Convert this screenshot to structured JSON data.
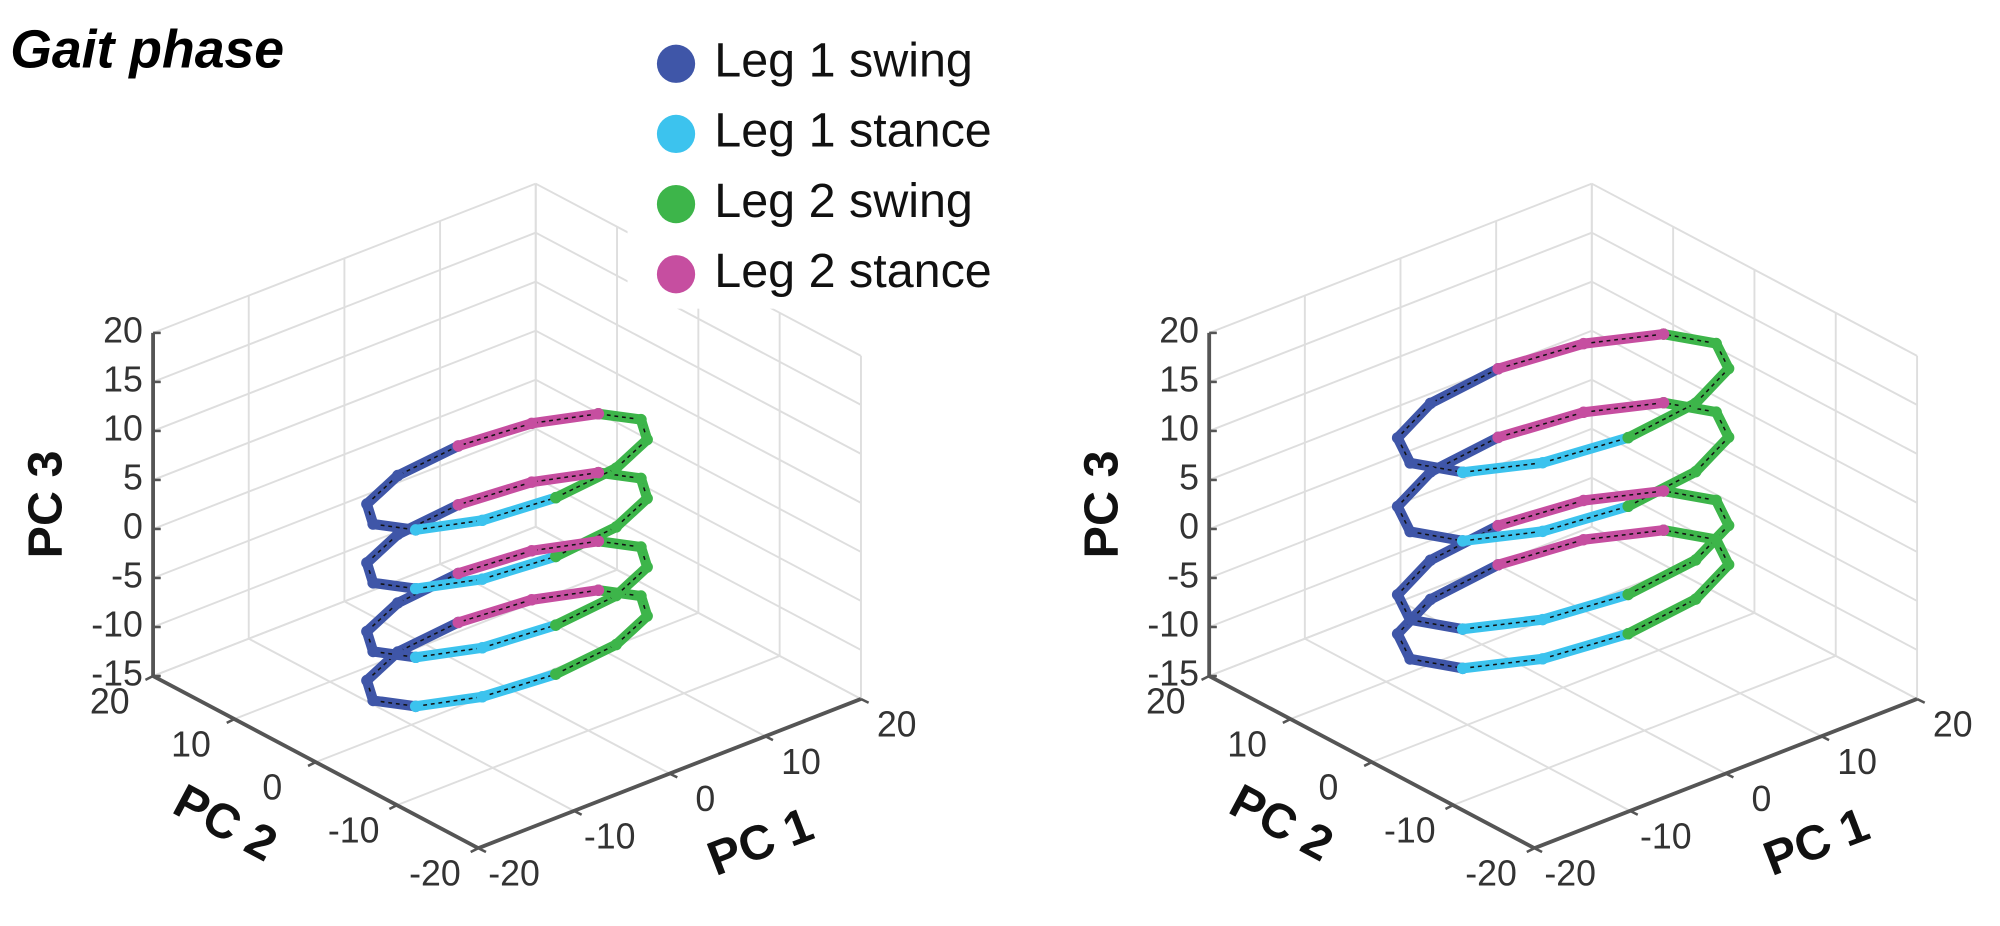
{
  "chart_data": [
    {
      "type": "scatter3d",
      "title": "Gait phase",
      "xlabel": "PC 1",
      "ylabel": "PC 2",
      "zlabel": "PC 3",
      "xlim": [
        -20,
        20
      ],
      "xticks": [
        -20,
        -10,
        0,
        10,
        20
      ],
      "ylim": [
        -20,
        20
      ],
      "yticks": [
        -20,
        -10,
        0,
        10,
        20
      ],
      "zlim": [
        -15,
        20
      ],
      "zticks": [
        -15,
        -10,
        -5,
        0,
        5,
        10,
        15,
        20
      ],
      "grid": true,
      "series": [
        {
          "name": "Leg 1 swing",
          "color": "#3f56a8",
          "x": [
            0,
            -7,
            -12.1,
            -14,
            -12.1,
            null,
            0,
            -7,
            -12.1,
            -14,
            -12.1,
            null,
            0,
            -7,
            -12.1,
            -14,
            -12.1,
            null,
            0,
            -7,
            -12.1,
            -14,
            -12.1
          ],
          "y": [
            6,
            5.2,
            3,
            0,
            -3,
            null,
            6,
            5.2,
            3,
            0,
            -3,
            null,
            6,
            5.2,
            3,
            0,
            -3,
            null,
            6,
            5.2,
            3,
            0,
            -3
          ],
          "z": [
            -11,
            -11,
            -11,
            -11,
            -11,
            null,
            -6,
            -6,
            -6,
            -6,
            -6,
            null,
            1,
            1,
            1,
            1,
            1,
            null,
            7,
            7,
            7,
            7,
            7
          ]
        },
        {
          "name": "Leg 1 stance",
          "color": "#3cc3ee",
          "x": [
            -12.1,
            -7,
            0,
            null,
            -12.1,
            -7,
            0,
            null,
            -12.1,
            -7,
            0,
            null,
            -12.1,
            -7,
            0
          ],
          "y": [
            -3,
            -5.2,
            -6,
            null,
            -3,
            -5.2,
            -6,
            null,
            -3,
            -5.2,
            -6,
            null,
            -3,
            -5.2,
            -6
          ],
          "z": [
            -11,
            -11,
            -11,
            null,
            -6,
            -6,
            -6,
            null,
            1,
            1,
            1,
            null,
            7,
            7,
            7
          ]
        },
        {
          "name": "Leg 2 swing",
          "color": "#3db54a",
          "x": [
            0,
            7,
            12.1,
            14,
            12.1,
            null,
            0,
            7,
            12.1,
            14,
            12.1,
            null,
            0,
            7,
            12.1,
            14,
            12.1,
            null,
            0,
            7,
            12.1,
            14,
            12.1
          ],
          "y": [
            -6,
            -5.2,
            -3,
            0,
            3,
            null,
            -6,
            -5.2,
            -3,
            0,
            3,
            null,
            -6,
            -5.2,
            -3,
            0,
            3,
            null,
            -6,
            -5.2,
            -3,
            0,
            3
          ],
          "z": [
            -11,
            -11,
            -11,
            -11,
            -11,
            null,
            -6,
            -6,
            -6,
            -6,
            -6,
            null,
            1,
            1,
            1,
            1,
            1,
            null,
            7,
            7,
            7,
            7,
            7
          ]
        },
        {
          "name": "Leg 2 stance",
          "color": "#c64ea0",
          "x": [
            12.1,
            7,
            0,
            null,
            12.1,
            7,
            0,
            null,
            12.1,
            7,
            0,
            null,
            12.1,
            7,
            0
          ],
          "y": [
            3,
            5.2,
            6,
            null,
            3,
            5.2,
            6,
            null,
            3,
            5.2,
            6,
            null,
            3,
            5.2,
            6
          ],
          "z": [
            -11,
            -11,
            -11,
            null,
            -6,
            -6,
            -6,
            null,
            1,
            1,
            1,
            null,
            7,
            7,
            7
          ]
        }
      ]
    },
    {
      "type": "scatter3d",
      "xlabel": "PC 1",
      "ylabel": "PC 2",
      "zlabel": "PC 3",
      "xlim": [
        -20,
        20
      ],
      "xticks": [
        -20,
        -10,
        0,
        10,
        20
      ],
      "ylim": [
        -20,
        20
      ],
      "yticks": [
        -20,
        -10,
        0,
        10,
        20
      ],
      "zlim": [
        -15,
        20
      ],
      "zticks": [
        -15,
        -10,
        -5,
        0,
        5,
        10,
        15,
        20
      ],
      "grid": true,
      "series": [
        {
          "color": "#3f56a8",
          "x": [
            0,
            -8,
            -13.9,
            -16,
            -13.9,
            null,
            0,
            -8,
            -13.9,
            -16,
            -13.9,
            null,
            0,
            -8,
            -13.9,
            -16,
            -13.9,
            null,
            0,
            -8,
            -13.9,
            -16,
            -13.9
          ],
          "y": [
            8,
            6.9,
            4,
            0,
            -4,
            null,
            8,
            6.9,
            4,
            0,
            -4,
            null,
            8,
            6.9,
            4,
            0,
            -4,
            null,
            8,
            6.9,
            4,
            0,
            -4
          ],
          "z": [
            -6,
            -6,
            -6,
            -6,
            -6,
            null,
            -2,
            -2,
            -2,
            -2,
            -2,
            null,
            7,
            7,
            7,
            7,
            7,
            null,
            14,
            14,
            14,
            14,
            14
          ]
        },
        {
          "color": "#3cc3ee",
          "x": [
            -13.9,
            -8,
            0,
            null,
            -13.9,
            -8,
            0,
            null,
            -13.9,
            -8,
            0,
            null,
            -13.9,
            -8,
            0
          ],
          "y": [
            -4,
            -6.9,
            -8,
            null,
            -4,
            -6.9,
            -8,
            null,
            -4,
            -6.9,
            -8,
            null,
            -4,
            -6.9,
            -8
          ],
          "z": [
            -6,
            -6,
            -6,
            null,
            -2,
            -2,
            -2,
            null,
            7,
            7,
            7,
            null,
            14,
            14,
            14
          ]
        },
        {
          "color": "#3db54a",
          "x": [
            0,
            8,
            13.9,
            16,
            13.9,
            null,
            0,
            8,
            13.9,
            16,
            13.9,
            null,
            0,
            8,
            13.9,
            16,
            13.9,
            null,
            0,
            8,
            13.9,
            16,
            13.9
          ],
          "y": [
            -8,
            -6.9,
            -4,
            0,
            4,
            null,
            -8,
            -6.9,
            -4,
            0,
            4,
            null,
            -8,
            -6.9,
            -4,
            0,
            4,
            null,
            -8,
            -6.9,
            -4,
            0,
            4
          ],
          "z": [
            -6,
            -6,
            -6,
            -6,
            -6,
            null,
            -2,
            -2,
            -2,
            -2,
            -2,
            null,
            7,
            7,
            7,
            7,
            7,
            null,
            14,
            14,
            14,
            14,
            14
          ]
        },
        {
          "color": "#c64ea0",
          "x": [
            13.9,
            8,
            0,
            null,
            13.9,
            8,
            0,
            null,
            13.9,
            8,
            0,
            null,
            13.9,
            8,
            0
          ],
          "y": [
            4,
            6.9,
            8,
            null,
            4,
            6.9,
            8,
            null,
            4,
            6.9,
            8,
            null,
            4,
            6.9,
            8
          ],
          "z": [
            -6,
            -6,
            -6,
            null,
            -2,
            -2,
            -2,
            null,
            7,
            7,
            7,
            null,
            14,
            14,
            14
          ]
        }
      ]
    }
  ]
}
